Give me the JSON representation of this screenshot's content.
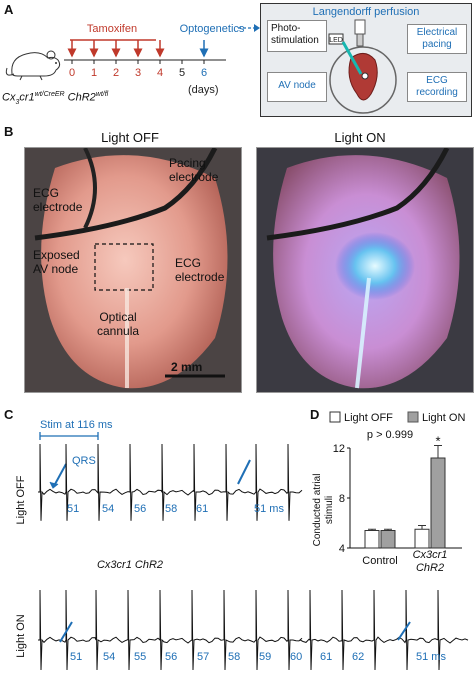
{
  "panel_a": {
    "letter": "A",
    "tamoxifen_label": "Tamoxifen",
    "optogenetics_label": "Optogenetics",
    "days": [
      "0",
      "1",
      "2",
      "3",
      "4",
      "5",
      "6"
    ],
    "days_unit": "(days)",
    "mouse_line": {
      "gene1": "Cx",
      "gene1_sub": "3",
      "gene1_rest": "cr1",
      "gene1_sup": "wt/CreER",
      "gene2": "ChR2",
      "gene2_sup": "wt/fl"
    },
    "langendorff": {
      "title": "Langendorff perfusion",
      "photostim": "Photo-\nstimulation",
      "led": "LED",
      "pacing": "Electrical\npacing",
      "av_node": "AV node",
      "ecg": "ECG\nrecording"
    }
  },
  "panel_b": {
    "letter": "B",
    "light_off": "Light OFF",
    "light_on": "Light ON",
    "ecg_electrode_left": "ECG\nelectrode",
    "pacing_electrode": "Pacing\nelectrode",
    "exposed_av_node": "Exposed\nAV node",
    "ecg_electrode_right": "ECG\nelectrode",
    "optical_cannula": "Optical\ncannula",
    "scale_bar": "2 mm"
  },
  "panel_c": {
    "letter": "C",
    "stim_label": "Stim at 116 ms",
    "qrs_label": "QRS",
    "row_off_label": "Light OFF",
    "row_on_label": "Light ON",
    "genotype": "Cx3cr1 ChR2",
    "off_intervals": [
      "51",
      "54",
      "56",
      "58",
      "61",
      "51 ms"
    ],
    "on_intervals": [
      "51",
      "54",
      "55",
      "56",
      "57",
      "58",
      "59",
      "60",
      "61",
      "62",
      "51 ms"
    ]
  },
  "panel_d": {
    "letter": "D",
    "legend_off": "Light OFF",
    "legend_on": "Light ON",
    "pvalue": "p > 0.999",
    "star": "*",
    "ylabel": "Conducted atrial\nstimuli",
    "group1": "Control",
    "group2": "Cx3cr1\nChR2"
  },
  "colors": {
    "red_arrow": "#c0392b",
    "blue": "#1f6fb5",
    "bar_off": "#ffffff",
    "bar_on": "#a0a0a0"
  },
  "chart_data": {
    "type": "bar",
    "categories": [
      "Control",
      "Cx3cr1 ChR2"
    ],
    "series": [
      {
        "name": "Light OFF",
        "values": [
          5.4,
          5.5
        ],
        "errors": [
          0.1,
          0.3
        ]
      },
      {
        "name": "Light ON",
        "values": [
          5.4,
          11.2
        ],
        "errors": [
          0.1,
          1.0
        ]
      }
    ],
    "xlabel": "",
    "ylabel": "Conducted atrial stimuli",
    "ylim": [
      4,
      12
    ],
    "yticks": [
      4,
      8,
      12
    ],
    "legend": "top"
  }
}
